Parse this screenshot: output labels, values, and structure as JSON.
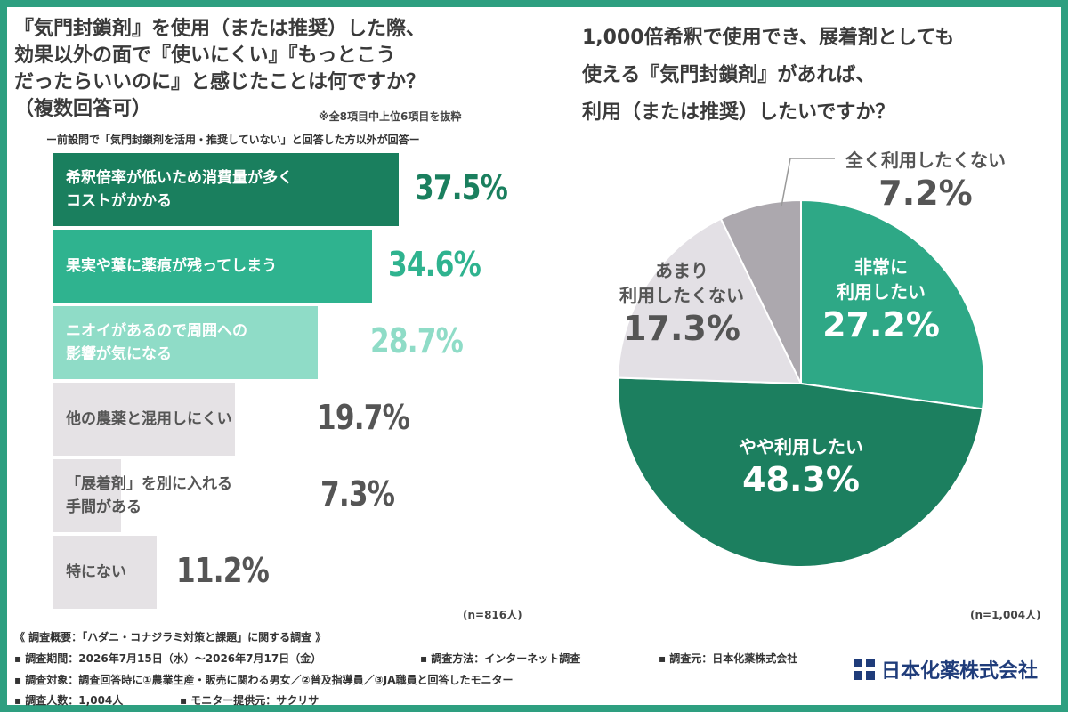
{
  "left": {
    "question": "『気門封鎖剤』を使用（または推奨）した際、\n効果以外の面で『使いにくい』『もっとこう\nだったらいいのに』と感じたことは何ですか？\n（複数回答可）",
    "note": "※全8項目中上位6項目を抜粋",
    "subtitle": "ー前設問で「気門封鎖剤を活用・推奨していない」と回答した方以外が回答ー",
    "n": "(n=816人)"
  },
  "right": {
    "question": "1,000倍希釈で使用でき、展着剤としても\n使える『気門封鎖剤』があれば、\n利用（または推奨）したいですか？",
    "n": "(n=1,004人)"
  },
  "chart_data": [
    {
      "type": "bar",
      "orientation": "horizontal",
      "xlim": [
        0,
        40
      ],
      "categories": [
        "希釈倍率が低いため消費量が多く\nコストがかかる",
        "果実や葉に薬痕が残ってしまう",
        "ニオイがあるので周囲への\n影響が気になる",
        "他の農薬と混用しにくい",
        "「展着剤」を別に入れる\n手間がある",
        "特にない"
      ],
      "values": [
        37.5,
        34.6,
        28.7,
        19.7,
        7.3,
        11.2
      ],
      "value_labels": [
        "37.5%",
        "34.6%",
        "28.7%",
        "19.7%",
        "7.3%",
        "11.2%"
      ],
      "colors": [
        "#1a7f5e",
        "#2fb38f",
        "#8fdcc7",
        "#e5e2e5",
        "#e5e2e5",
        "#e5e2e5"
      ]
    },
    {
      "type": "pie",
      "categories": [
        "非常に\n利用したい",
        "やや利用したい",
        "あまり\n利用したくない",
        "全く利用したくない"
      ],
      "values": [
        27.2,
        48.3,
        17.3,
        7.2
      ],
      "value_labels": [
        "27.2%",
        "48.3%",
        "17.3%",
        "7.2%"
      ],
      "colors": [
        "#2ea886",
        "#1c7f5f",
        "#e3e0e5",
        "#aca8ae"
      ]
    }
  ],
  "footer": {
    "overview": "《 調査概要：「ハダニ・コナジラミ対策と課題」に関する調査 》",
    "period": "▪ 調査期間：2026年7月15日（水）～2026年7月17日（金）",
    "method": "▪ 調査方法：インターネット調査",
    "source": "▪ 調査元：日本化薬株式会社",
    "target": "▪ 調査対象：調査回答時に①農業生産・販売に関わる男女／②普及指導員／③JA職員と回答したモニター",
    "count": "▪ 調査人数：1,004人",
    "provider": "▪ モニター提供元：サクリサ",
    "logo": "日本化薬株式会社"
  }
}
